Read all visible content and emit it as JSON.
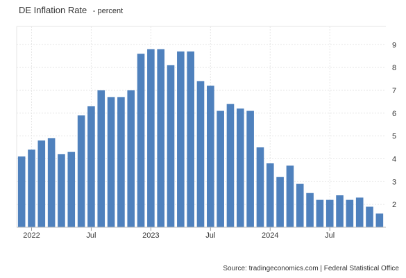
{
  "header": {
    "title": "DE Inflation Rate",
    "subtitle": "- percent"
  },
  "source": "Source: tradingeconomics.com | Federal Statistical Office",
  "chart_data": {
    "type": "bar",
    "color": "#4f81bd",
    "grid": true,
    "ylim": [
      1.0,
      9.8
    ],
    "y_ticks": [
      2,
      3,
      4,
      5,
      6,
      7,
      8,
      9
    ],
    "x_ticks": [
      {
        "label": "2022",
        "index": 1.5
      },
      {
        "label": "Jul",
        "index": 7.5
      },
      {
        "label": "2023",
        "index": 13.5
      },
      {
        "label": "Jul",
        "index": 19.5
      },
      {
        "label": "2024",
        "index": 25.5
      },
      {
        "label": "Jul",
        "index": 31.5
      }
    ],
    "values": [
      4.1,
      4.4,
      4.8,
      4.9,
      4.2,
      4.3,
      5.9,
      6.3,
      7.0,
      6.7,
      6.7,
      7.0,
      8.6,
      8.8,
      8.8,
      8.1,
      8.7,
      8.7,
      7.4,
      7.2,
      6.1,
      6.4,
      6.2,
      6.1,
      4.5,
      3.8,
      3.2,
      3.7,
      2.9,
      2.5,
      2.2,
      2.2,
      2.4,
      2.2,
      2.3,
      1.9,
      1.6
    ]
  }
}
